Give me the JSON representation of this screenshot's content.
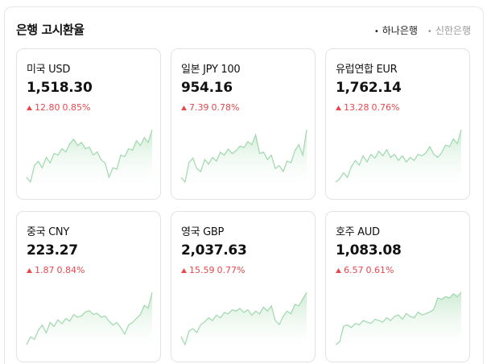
{
  "header": {
    "title": "은행 고시환율",
    "tabs": [
      "하나은행",
      "신한은행"
    ]
  },
  "cards": [
    {
      "name": "미국 USD",
      "value": "1,518.30",
      "change": "12.80",
      "change_pct": "0.85%",
      "sparkline": [
        30,
        24,
        45,
        50,
        42,
        55,
        48,
        60,
        58,
        66,
        62,
        72,
        78,
        70,
        74,
        66,
        68,
        58,
        62,
        52,
        48,
        30,
        42,
        40,
        58,
        56,
        66,
        64,
        76,
        70,
        80,
        74,
        90
      ]
    },
    {
      "name": "일본 JPY 100",
      "value": "954.16",
      "change": "7.39",
      "change_pct": "0.78%",
      "sparkline": [
        28,
        22,
        48,
        54,
        40,
        36,
        52,
        46,
        55,
        50,
        62,
        58,
        66,
        60,
        64,
        70,
        68,
        76,
        72,
        85,
        60,
        62,
        52,
        58,
        40,
        44,
        36,
        50,
        48,
        64,
        72,
        58,
        92
      ]
    },
    {
      "name": "유럽연합 EUR",
      "value": "1,762.14",
      "change": "13.28",
      "change_pct": "0.76%",
      "sparkline": [
        24,
        28,
        36,
        30,
        44,
        52,
        46,
        58,
        50,
        60,
        55,
        64,
        58,
        66,
        56,
        60,
        52,
        58,
        50,
        56,
        52,
        60,
        58,
        62,
        70,
        60,
        56,
        62,
        72,
        70,
        80,
        74,
        92
      ]
    },
    {
      "name": "중국 CNY",
      "value": "223.27",
      "change": "1.87",
      "change_pct": "0.84%",
      "sparkline": [
        10,
        22,
        18,
        32,
        40,
        28,
        44,
        38,
        48,
        42,
        50,
        46,
        56,
        52,
        54,
        60,
        62,
        56,
        58,
        52,
        54,
        46,
        40,
        44,
        36,
        26,
        40,
        44,
        50,
        56,
        70,
        66,
        90
      ]
    },
    {
      "name": "영국 GBP",
      "value": "2,037.63",
      "change": "15.59",
      "change_pct": "0.77%",
      "sparkline": [
        22,
        10,
        30,
        34,
        28,
        40,
        44,
        50,
        46,
        54,
        50,
        58,
        56,
        62,
        60,
        64,
        58,
        62,
        54,
        60,
        56,
        66,
        60,
        68,
        46,
        40,
        52,
        60,
        56,
        70,
        68,
        78,
        88
      ]
    },
    {
      "name": "호주 AUD",
      "value": "1,083.08",
      "change": "6.57",
      "change_pct": "0.61%",
      "sparkline": [
        16,
        20,
        42,
        44,
        40,
        46,
        44,
        50,
        48,
        46,
        52,
        50,
        48,
        54,
        50,
        56,
        58,
        52,
        60,
        56,
        54,
        62,
        58,
        60,
        62,
        66,
        82,
        80,
        84,
        82,
        88,
        84,
        90
      ]
    }
  ]
}
